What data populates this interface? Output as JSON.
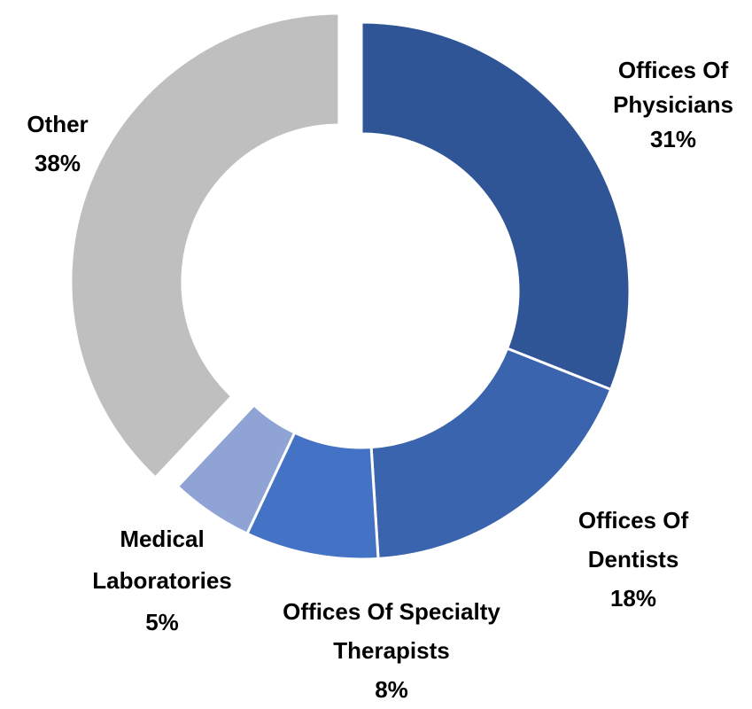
{
  "chart_data": {
    "type": "donut",
    "categories": [
      "Offices Of Physicians",
      "Offices Of Dentists",
      "Offices Of Specialty Therapists",
      "Medical Laboratories",
      "Other"
    ],
    "values": [
      31,
      18,
      8,
      5,
      38
    ],
    "value_labels": [
      "31%",
      "18%",
      "8%",
      "5%",
      "38%"
    ],
    "colors": [
      "#2f5597",
      "#3a64ad",
      "#4472c4",
      "#8fa4d4",
      "#bfbfbf"
    ]
  }
}
